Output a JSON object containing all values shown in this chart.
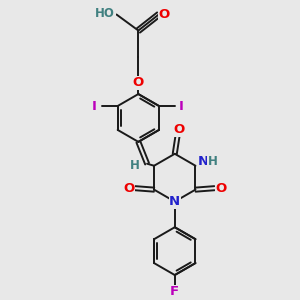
{
  "bg_color": "#e8e8e8",
  "bond_color": "#1a1a1a",
  "atom_colors": {
    "O": "#ee0000",
    "N": "#2222cc",
    "F": "#bb00bb",
    "I": "#bb00bb",
    "H": "#408080",
    "C": "#1a1a1a"
  },
  "font_size": 8.5,
  "fig_size": [
    3.0,
    3.0
  ],
  "dpi": 100
}
